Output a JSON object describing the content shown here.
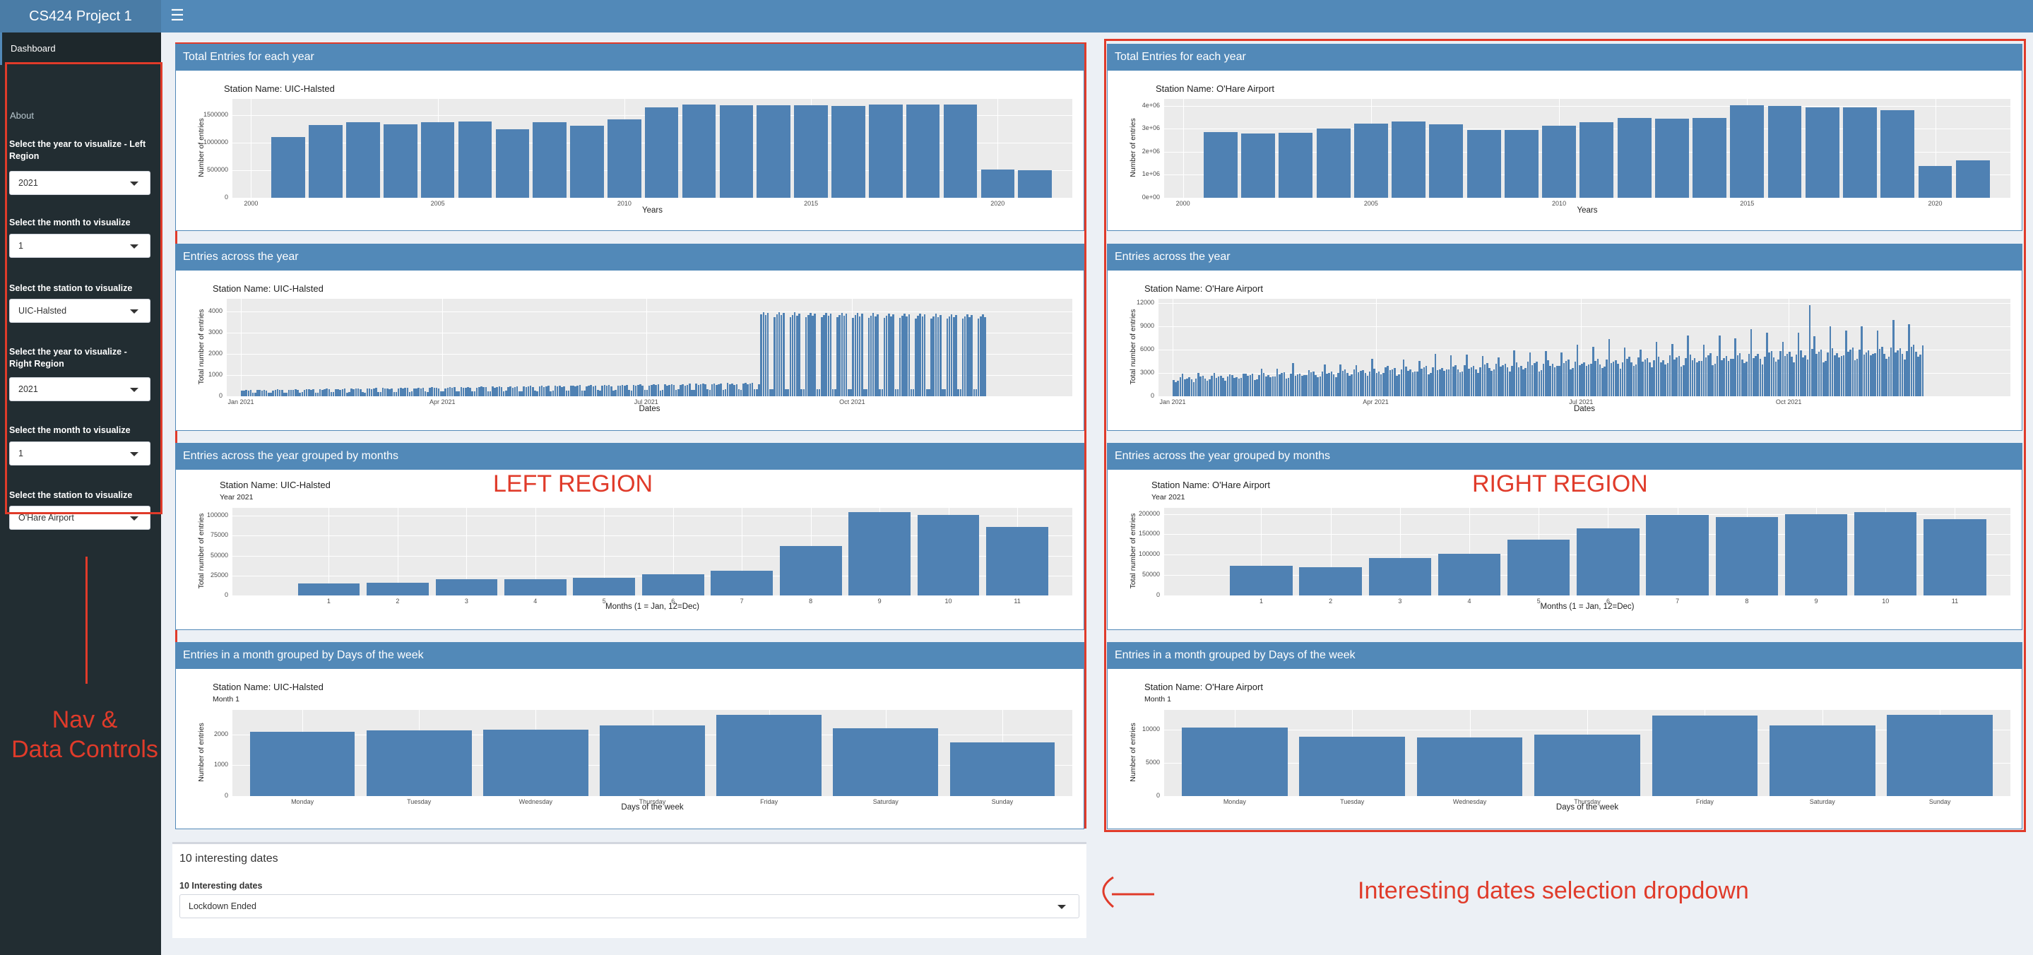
{
  "app": {
    "title": "CS424 Project 1",
    "menu_icon": "hamburger-icon"
  },
  "sidebar": {
    "nav_item": "Dashboard",
    "about": "About",
    "controls": [
      {
        "label": "Select the year to visualize - Left Region",
        "value": "2021"
      },
      {
        "label": "Select the month to visualize",
        "value": "1"
      },
      {
        "label": "Select the station to visualize",
        "value": "UIC-Halsted"
      },
      {
        "label": "Select the year to visualize - Right Region",
        "value": "2021"
      },
      {
        "label": "Select the month to visualize",
        "value": "1"
      },
      {
        "label": "Select the station to visualize",
        "value": "O'Hare Airport"
      }
    ]
  },
  "annotations": {
    "nav": "Nav & Data Controls",
    "left": "LEFT REGION",
    "right": "RIGHT REGION",
    "dates": "Interesting dates selection dropdown"
  },
  "colors": {
    "header": "#5289b8",
    "bar": "#4f81b3",
    "annotation": "#e03b2a"
  },
  "station_label": "Station Name:",
  "regions": [
    {
      "station": "UIC-Halsted",
      "year_note": "Year 2021",
      "month_note": "Month 1",
      "panels": [
        {
          "title": "Total Entries for each year"
        },
        {
          "title": "Entries across the year"
        },
        {
          "title": "Entries across the year grouped by months"
        },
        {
          "title": "Entries in a month grouped by Days of the week"
        }
      ]
    },
    {
      "station": "O'Hare Airport",
      "year_note": "Year 2021",
      "month_note": "Month 1",
      "panels": [
        {
          "title": "Total Entries for each year"
        },
        {
          "title": "Entries across the year"
        },
        {
          "title": "Entries across the year grouped by months"
        },
        {
          "title": "Entries in a month grouped by Days of the week"
        }
      ]
    }
  ],
  "chart_data": [
    {
      "id": "L-yearly",
      "type": "bar",
      "title": "Total Entries for each year",
      "xlabel": "Years",
      "ylabel": "Number of entries",
      "x": [
        2001,
        2002,
        2003,
        2004,
        2005,
        2006,
        2007,
        2008,
        2009,
        2010,
        2011,
        2012,
        2013,
        2014,
        2015,
        2016,
        2017,
        2018,
        2019,
        2020,
        2021
      ],
      "values": [
        1100000,
        1320000,
        1380000,
        1340000,
        1380000,
        1390000,
        1250000,
        1380000,
        1310000,
        1430000,
        1640000,
        1700000,
        1680000,
        1690000,
        1690000,
        1670000,
        1700000,
        1700000,
        1700000,
        520000,
        500000
      ],
      "xlim": [
        1999.5,
        2022
      ],
      "xticks": [
        2000,
        2005,
        2010,
        2015,
        2020
      ],
      "ylim": [
        0,
        1800000
      ],
      "yticks": [
        0,
        500000,
        1000000,
        1500000
      ],
      "ytick_labels": [
        "0",
        "500000",
        "1000000",
        "1500000"
      ]
    },
    {
      "id": "L-daily",
      "type": "bar",
      "title": "Entries across the year",
      "xlabel": "Dates",
      "ylabel": "Total number of entries",
      "xlim": [
        0,
        365
      ],
      "ylim": [
        0,
        4600
      ],
      "yticks": [
        0,
        1000,
        2000,
        3000,
        4000
      ],
      "ytick_labels": [
        "0",
        "1000",
        "2000",
        "3000",
        "4000"
      ],
      "xtick_days": [
        0,
        90,
        181,
        273
      ],
      "xtick_labels": [
        "Jan 2021",
        "Apr 2021",
        "Jul 2021",
        "Oct 2021"
      ],
      "series_profile": {
        "start_day": 0,
        "end_day": 332,
        "base_start": 280,
        "base_end": 750,
        "jump_day": 232,
        "high_level": 4000,
        "weekend_level": 350
      }
    },
    {
      "id": "L-monthly",
      "type": "bar",
      "title": "Entries across the year grouped by months",
      "xlabel": "Months (1 = Jan, 12=Dec)",
      "ylabel": "Total number of entries",
      "categories": [
        "1",
        "2",
        "3",
        "4",
        "5",
        "6",
        "7",
        "8",
        "9",
        "10",
        "11"
      ],
      "values": [
        15000,
        16000,
        20000,
        20500,
        22000,
        27000,
        31000,
        62000,
        105000,
        101000,
        86000
      ],
      "ylim": [
        0,
        110000
      ],
      "yticks": [
        0,
        25000,
        50000,
        75000,
        100000
      ],
      "ytick_labels": [
        "0",
        "25000",
        "50000",
        "75000",
        "100000"
      ]
    },
    {
      "id": "L-weekday",
      "type": "bar",
      "title": "Entries in a month grouped by Days of the week",
      "xlabel": "Days of the week",
      "ylabel": "Number of entries",
      "categories": [
        "Monday",
        "Tuesday",
        "Wednesday",
        "Thursday",
        "Friday",
        "Saturday",
        "Sunday"
      ],
      "values": [
        2100,
        2130,
        2150,
        2300,
        2650,
        2200,
        1750
      ],
      "ylim": [
        0,
        2800
      ],
      "yticks": [
        0,
        1000,
        2000
      ],
      "ytick_labels": [
        "0",
        "1000",
        "2000"
      ]
    },
    {
      "id": "R-yearly",
      "type": "bar",
      "title": "Total Entries for each year",
      "xlabel": "Years",
      "ylabel": "Number of entries",
      "x": [
        2001,
        2002,
        2003,
        2004,
        2005,
        2006,
        2007,
        2008,
        2009,
        2010,
        2011,
        2012,
        2013,
        2014,
        2015,
        2016,
        2017,
        2018,
        2019,
        2020,
        2021
      ],
      "values": [
        2850000,
        2800000,
        2820000,
        3020000,
        3220000,
        3330000,
        3200000,
        2950000,
        2950000,
        3130000,
        3300000,
        3480000,
        3450000,
        3480000,
        4020000,
        3980000,
        3930000,
        3940000,
        3800000,
        1380000,
        1620000
      ],
      "xlim": [
        1999.5,
        2022
      ],
      "xticks": [
        2000,
        2005,
        2010,
        2015,
        2020
      ],
      "ylim": [
        0,
        4300000
      ],
      "yticks": [
        0,
        1000000,
        2000000,
        3000000,
        4000000
      ],
      "ytick_labels": [
        "0e+00",
        "1e+06",
        "2e+06",
        "3e+06",
        "4e+06"
      ]
    },
    {
      "id": "R-daily",
      "type": "bar",
      "title": "Entries across the year",
      "xlabel": "Dates",
      "ylabel": "Total number of entries",
      "xlim": [
        0,
        365
      ],
      "ylim": [
        0,
        12500
      ],
      "yticks": [
        0,
        3000,
        6000,
        9000,
        12000
      ],
      "ytick_labels": [
        "0",
        "3000",
        "6000",
        "9000",
        "12000"
      ],
      "xtick_days": [
        0,
        90,
        181,
        273
      ],
      "xtick_labels": [
        "Jan 2021",
        "Apr 2021",
        "Jul 2021",
        "Oct 2021"
      ],
      "series_profile": {
        "start_day": 0,
        "end_day": 332,
        "base_start": 2300,
        "base_end": 6200,
        "peak_extra": 2800
      }
    },
    {
      "id": "R-monthly",
      "type": "bar",
      "title": "Entries across the year grouped by months",
      "xlabel": "Months (1 = Jan, 12=Dec)",
      "ylabel": "Total number of entries",
      "categories": [
        "1",
        "2",
        "3",
        "4",
        "5",
        "6",
        "7",
        "8",
        "9",
        "10",
        "11"
      ],
      "values": [
        72000,
        70000,
        92000,
        103000,
        137000,
        165000,
        198000,
        193000,
        199000,
        204000,
        187000
      ],
      "ylim": [
        0,
        215000
      ],
      "yticks": [
        0,
        50000,
        100000,
        150000,
        200000
      ],
      "ytick_labels": [
        "0",
        "50000",
        "100000",
        "150000",
        "200000"
      ]
    },
    {
      "id": "R-weekday",
      "type": "bar",
      "title": "Entries in a month grouped by Days of the week",
      "xlabel": "Days of the week",
      "ylabel": "Number of entries",
      "categories": [
        "Monday",
        "Tuesday",
        "Wednesday",
        "Thursday",
        "Friday",
        "Saturday",
        "Sunday"
      ],
      "values": [
        10300,
        9000,
        8800,
        9300,
        12100,
        10700,
        12300
      ],
      "ylim": [
        0,
        13000
      ],
      "yticks": [
        0,
        5000,
        10000
      ],
      "ytick_labels": [
        "0",
        "5000",
        "10000"
      ]
    }
  ],
  "interesting_dates": {
    "box_title": "10 interesting dates",
    "label": "10 Interesting dates",
    "value": "Lockdown Ended"
  }
}
